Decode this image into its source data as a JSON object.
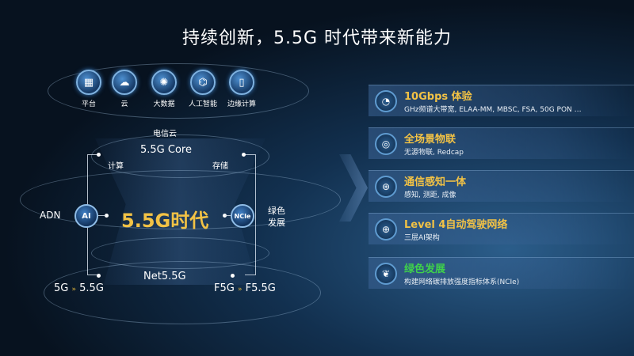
{
  "title": "持续创新，5.5G 时代带来新能力",
  "top_icons": [
    {
      "icon": "platform-icon",
      "label": "平台"
    },
    {
      "icon": "cloud-icon",
      "label": "云"
    },
    {
      "icon": "big-data-icon",
      "label": "大数据"
    },
    {
      "icon": "ai-chip-icon",
      "label": "人工智能"
    },
    {
      "icon": "edge-computing-icon",
      "label": "边缘计算"
    }
  ],
  "diagram": {
    "telecom_cloud": "电信云",
    "core": "5.5G Core",
    "compute": "计算",
    "storage": "存储",
    "era": "5.5G时代",
    "adn": "ADN",
    "ai_badge": "AI",
    "ncie_badge": "NCIe",
    "green_line1": "绿色",
    "green_line2": "发展",
    "net": "Net5.5G",
    "left_from": "5G",
    "left_to": "5.5G",
    "right_from": "F5G",
    "right_to": "F5.5G"
  },
  "features": [
    {
      "icon": "speed-gauge-icon",
      "title": "10Gbps 体验",
      "subtitle": "GHz频谱大带宽, ELAA-MM, MBSC, FSA, 50G PON …",
      "color": "#f2c245"
    },
    {
      "icon": "iot-icon",
      "title": "全场景物联",
      "subtitle": "无源物联, Redcap",
      "color": "#f2c245"
    },
    {
      "icon": "sensing-icon",
      "title": "通信感知一体",
      "subtitle": "感知, 测距, 成像",
      "color": "#f2c245"
    },
    {
      "icon": "autonomous-network-icon",
      "title": "Level 4自动驾驶网络",
      "subtitle": "三层AI架构",
      "color": "#f2c245"
    },
    {
      "icon": "leaf-icon",
      "title": "绿色发展",
      "subtitle": "构建网络碳排放强度指标体系(NCIe)",
      "color": "#3fd24a"
    }
  ]
}
